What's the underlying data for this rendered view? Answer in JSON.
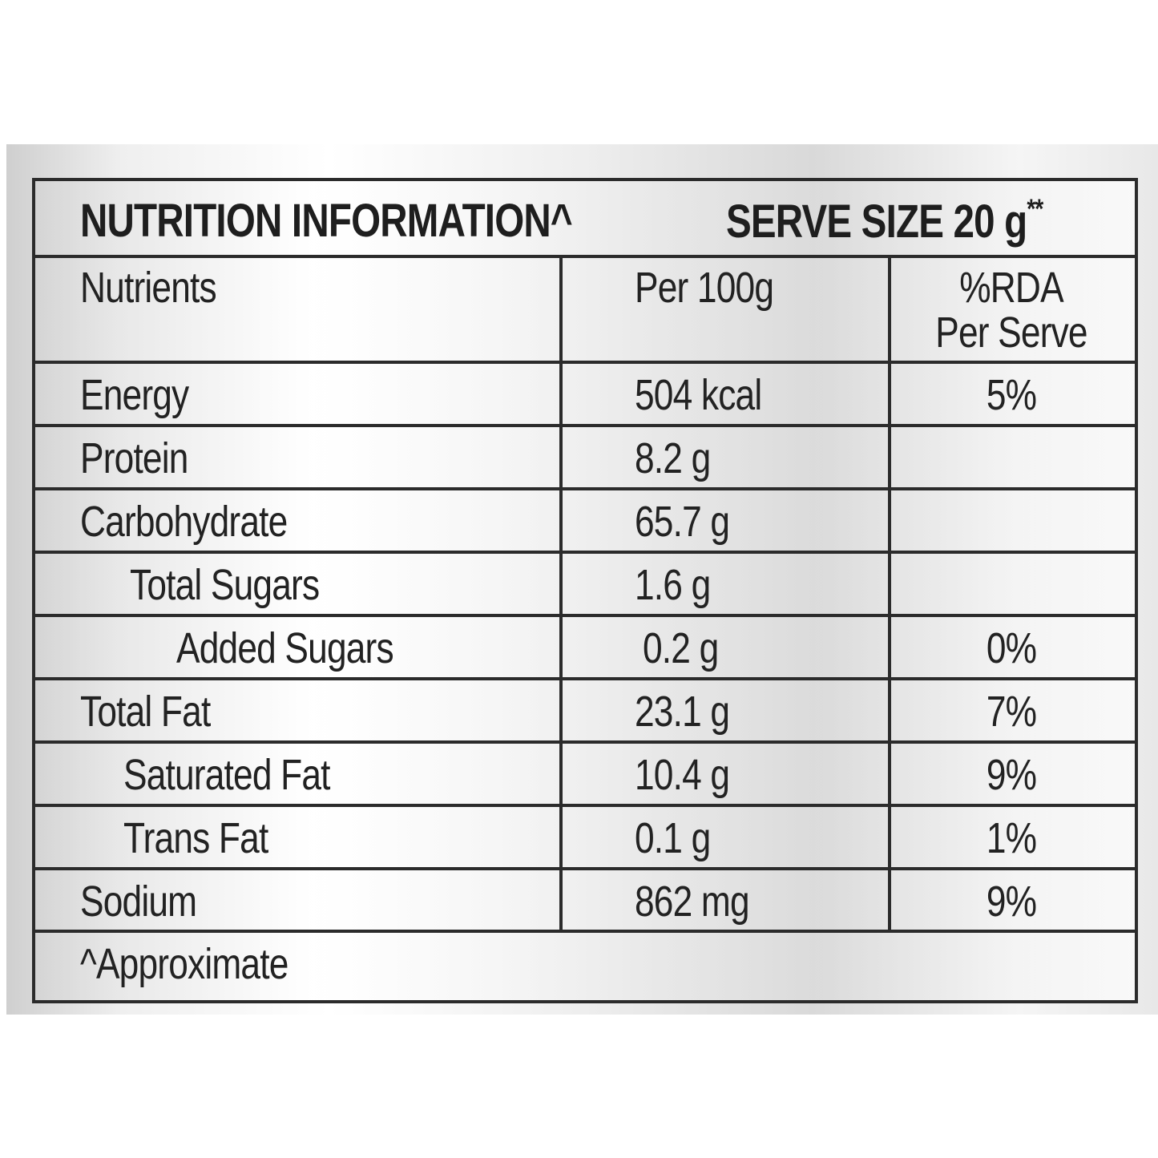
{
  "header": {
    "title": "NUTRITION INFORMATION^",
    "serve_size": "SERVE SIZE 20 g",
    "serve_size_mark": "**"
  },
  "columns": {
    "nutrients": "Nutrients",
    "per100": "Per 100g",
    "rda_line1": "%RDA",
    "rda_line2": "Per Serve"
  },
  "rows": [
    {
      "name": "Energy",
      "per100": "504 kcal",
      "rda": "5%"
    },
    {
      "name": "Protein",
      "per100": "8.2 g",
      "rda": ""
    },
    {
      "name": "Carbohydrate",
      "per100": "65.7 g",
      "rda": ""
    },
    {
      "name": "Total Sugars",
      "per100": "1.6 g",
      "rda": ""
    },
    {
      "name": "Added Sugars",
      "per100": "0.2 g",
      "rda": "0%"
    },
    {
      "name": "Total Fat",
      "per100": "23.1 g",
      "rda": "7%"
    },
    {
      "name": "Saturated Fat",
      "per100": "10.4 g",
      "rda": "9%"
    },
    {
      "name": "Trans Fat",
      "per100": "0.1 g",
      "rda": "1%"
    },
    {
      "name": "Sodium",
      "per100": "862 mg",
      "rda": "9%"
    }
  ],
  "footnote": "^Approximate"
}
